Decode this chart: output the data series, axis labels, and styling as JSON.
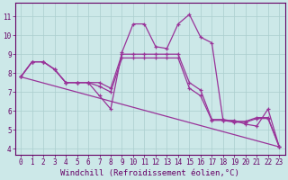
{
  "xlabel": "Windchill (Refroidissement éolien,°C)",
  "bg_color": "#cce8e8",
  "grid_color": "#aacece",
  "line_color": "#993399",
  "xlim": [
    -0.5,
    23.5
  ],
  "ylim": [
    3.7,
    11.7
  ],
  "xticks": [
    0,
    1,
    2,
    3,
    4,
    5,
    6,
    7,
    8,
    9,
    10,
    11,
    12,
    13,
    14,
    15,
    16,
    17,
    18,
    19,
    20,
    21,
    22,
    23
  ],
  "yticks": [
    4,
    5,
    6,
    7,
    8,
    9,
    10,
    11
  ],
  "series": [
    {
      "x": [
        0,
        1,
        2,
        3,
        4,
        5,
        6,
        7,
        8,
        9,
        10,
        11,
        12,
        13,
        14,
        15,
        16,
        17,
        18,
        19,
        20,
        21,
        22,
        23
      ],
      "y": [
        7.8,
        8.6,
        8.6,
        8.2,
        7.5,
        7.5,
        7.5,
        6.8,
        6.1,
        9.1,
        10.6,
        10.6,
        9.4,
        9.3,
        10.6,
        11.1,
        9.9,
        9.6,
        5.5,
        5.5,
        5.3,
        5.2,
        6.1,
        4.1
      ],
      "marker": true
    },
    {
      "x": [
        0,
        1,
        2,
        3,
        4,
        5,
        6,
        7,
        8,
        9,
        10,
        11,
        12,
        13,
        14,
        15,
        16,
        17,
        18,
        19,
        20,
        21,
        22,
        23
      ],
      "y": [
        7.8,
        8.6,
        8.6,
        8.2,
        7.5,
        7.5,
        7.5,
        7.3,
        7.0,
        8.8,
        8.8,
        8.8,
        8.8,
        8.8,
        8.8,
        7.2,
        6.8,
        5.5,
        5.5,
        5.4,
        5.4,
        5.6,
        5.6,
        4.1
      ],
      "marker": true
    },
    {
      "x": [
        0,
        1,
        2,
        3,
        4,
        5,
        6,
        7,
        8,
        9,
        10,
        11,
        12,
        13,
        14,
        15,
        16,
        17,
        18,
        19,
        20,
        21,
        22,
        23
      ],
      "y": [
        7.8,
        8.6,
        8.6,
        8.2,
        7.5,
        7.5,
        7.5,
        7.5,
        7.2,
        9.0,
        9.0,
        9.0,
        9.0,
        9.0,
        9.0,
        7.5,
        7.1,
        5.55,
        5.55,
        5.45,
        5.45,
        5.65,
        5.65,
        4.1
      ],
      "marker": true
    },
    {
      "x": [
        0,
        23
      ],
      "y": [
        7.8,
        4.1
      ],
      "marker": false
    }
  ],
  "marker_style": "+",
  "markersize": 3.5,
  "linewidth": 0.9,
  "xlabel_fontsize": 6.5,
  "tick_fontsize": 5.5,
  "tick_color": "#660066",
  "axis_color": "#660066",
  "label_color": "#660066"
}
